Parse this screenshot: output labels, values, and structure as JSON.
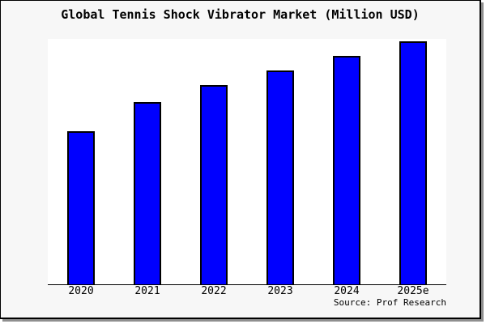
{
  "colors": {
    "bar_fill": "#0000FF",
    "bar_border": "#000000",
    "frame_bg": "#F7F7F7",
    "plot_bg": "#FFFFFF",
    "ink": "#000000",
    "frame_shadow": "#8F8F8F"
  },
  "chart_data": {
    "type": "bar",
    "title": "Global Tennis Shock Vibrator Market (Million USD)",
    "categories": [
      "2020",
      "2021",
      "2022",
      "2023",
      "2024",
      "2025e"
    ],
    "values": [
      63,
      75,
      82,
      88,
      94,
      100
    ],
    "values_note": "No y-axis ticks or data labels are shown; values are relative estimates from bar heights with 2025e = 100.",
    "xlabel": "",
    "ylabel": "",
    "ylim": [
      0,
      101
    ],
    "grid": false,
    "legend": false,
    "annotations": [
      "Source: Prof Research"
    ]
  }
}
